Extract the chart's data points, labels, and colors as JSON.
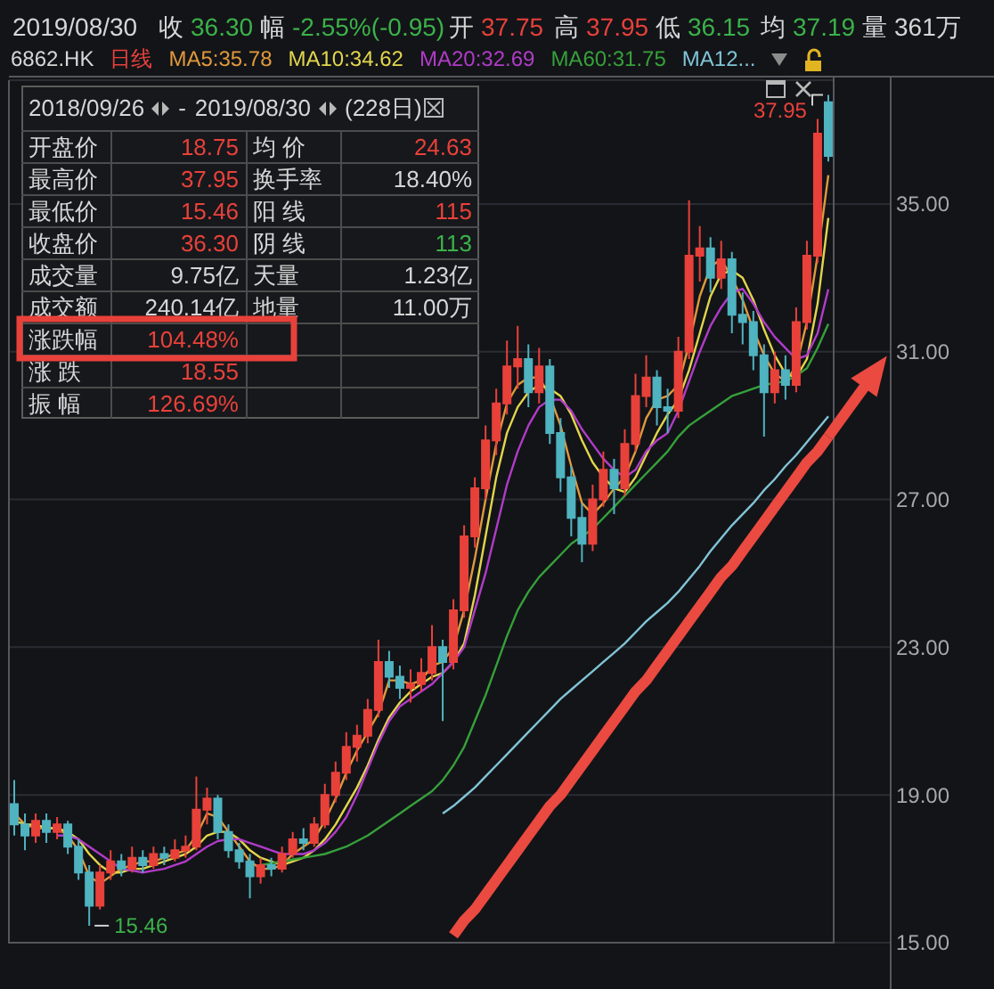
{
  "chart_data": {
    "type": "candlestick",
    "categories": [
      null,
      null,
      null,
      null,
      null,
      null,
      null,
      null,
      null,
      null,
      null,
      null,
      null,
      null,
      null,
      null,
      null,
      null,
      null,
      null,
      null,
      null,
      null,
      null,
      null,
      null,
      null,
      null,
      null,
      null,
      null,
      null,
      null,
      null,
      null,
      null,
      null,
      null,
      null,
      null,
      null,
      null,
      null,
      null,
      null,
      null,
      null,
      null,
      null,
      null,
      null,
      null,
      null,
      null,
      null,
      null,
      null,
      null,
      null,
      null,
      null,
      null,
      null,
      null,
      null,
      null,
      null,
      null,
      null,
      null,
      null,
      null,
      null,
      null,
      null,
      null,
      null
    ],
    "ohlc": [
      [
        18.75,
        19.4,
        17.9,
        18.2
      ],
      [
        18.2,
        18.5,
        17.5,
        17.9
      ],
      [
        17.9,
        18.5,
        17.7,
        18.3
      ],
      [
        18.3,
        18.5,
        17.7,
        18.0
      ],
      [
        18.0,
        18.4,
        17.8,
        18.2
      ],
      [
        18.2,
        18.3,
        17.4,
        17.6
      ],
      [
        17.6,
        17.8,
        16.7,
        16.9
      ],
      [
        16.9,
        17.1,
        15.46,
        16.0
      ],
      [
        16.0,
        17.1,
        15.9,
        16.9
      ],
      [
        16.9,
        17.5,
        16.7,
        17.2
      ],
      [
        17.2,
        17.4,
        16.8,
        17.0
      ],
      [
        17.0,
        17.6,
        16.9,
        17.3
      ],
      [
        17.3,
        17.5,
        16.9,
        17.1
      ],
      [
        17.1,
        17.6,
        17.0,
        17.4
      ],
      [
        17.4,
        17.6,
        17.1,
        17.3
      ],
      [
        17.3,
        17.8,
        17.2,
        17.5
      ],
      [
        17.5,
        17.9,
        17.3,
        17.6
      ],
      [
        17.6,
        19.5,
        17.5,
        18.6
      ],
      [
        18.6,
        19.2,
        18.2,
        18.9
      ],
      [
        18.9,
        19.0,
        17.8,
        18.0
      ],
      [
        18.0,
        18.2,
        17.3,
        17.5
      ],
      [
        17.5,
        17.7,
        17.0,
        17.2
      ],
      [
        17.2,
        17.4,
        16.2,
        16.8
      ],
      [
        16.8,
        17.3,
        16.6,
        17.1
      ],
      [
        17.1,
        17.3,
        16.8,
        17.0
      ],
      [
        17.0,
        17.6,
        16.9,
        17.4
      ],
      [
        17.4,
        18.0,
        17.3,
        17.8
      ],
      [
        17.8,
        18.1,
        17.5,
        17.7
      ],
      [
        17.7,
        18.4,
        17.6,
        18.2
      ],
      [
        18.2,
        19.3,
        18.1,
        19.0
      ],
      [
        19.0,
        19.9,
        18.8,
        19.6
      ],
      [
        19.6,
        20.7,
        19.4,
        20.3
      ],
      [
        20.3,
        20.9,
        19.9,
        20.6
      ],
      [
        20.6,
        21.6,
        20.4,
        21.3
      ],
      [
        21.3,
        23.2,
        21.1,
        22.6
      ],
      [
        22.6,
        22.9,
        21.9,
        22.2
      ],
      [
        22.2,
        22.5,
        21.6,
        21.9
      ],
      [
        21.9,
        22.4,
        21.5,
        22.0
      ],
      [
        22.0,
        22.7,
        21.8,
        22.3
      ],
      [
        22.3,
        23.6,
        22.1,
        23.0
      ],
      [
        23.0,
        23.2,
        21.0,
        22.6
      ],
      [
        22.6,
        24.3,
        22.4,
        24.0
      ],
      [
        24.0,
        26.3,
        23.8,
        26.0
      ],
      [
        26.0,
        27.6,
        25.7,
        27.3
      ],
      [
        27.3,
        29.0,
        27.0,
        28.6
      ],
      [
        28.6,
        30.0,
        28.2,
        29.6
      ],
      [
        29.6,
        31.3,
        29.3,
        30.6
      ],
      [
        30.6,
        31.7,
        30.0,
        30.8
      ],
      [
        30.8,
        31.2,
        29.5,
        29.9
      ],
      [
        29.9,
        31.1,
        29.6,
        30.6
      ],
      [
        30.6,
        30.8,
        28.5,
        28.8
      ],
      [
        28.8,
        29.2,
        27.2,
        27.6
      ],
      [
        27.6,
        27.9,
        26.0,
        26.5
      ],
      [
        26.5,
        26.9,
        25.3,
        25.8
      ],
      [
        25.8,
        27.4,
        25.6,
        27.0
      ],
      [
        27.0,
        28.3,
        26.8,
        27.8
      ],
      [
        27.8,
        28.1,
        26.6,
        27.3
      ],
      [
        27.3,
        28.9,
        27.1,
        28.5
      ],
      [
        28.5,
        30.4,
        28.3,
        29.8
      ],
      [
        29.8,
        30.9,
        29.5,
        30.3
      ],
      [
        30.3,
        30.5,
        29.0,
        29.5
      ],
      [
        29.5,
        30.0,
        28.8,
        29.4
      ],
      [
        29.4,
        31.4,
        29.2,
        31.0
      ],
      [
        31.0,
        35.1,
        30.8,
        33.6
      ],
      [
        33.6,
        34.4,
        32.9,
        33.8
      ],
      [
        33.8,
        34.1,
        32.6,
        33.0
      ],
      [
        33.0,
        34.0,
        32.7,
        33.5
      ],
      [
        33.5,
        33.7,
        31.5,
        32.0
      ],
      [
        32.0,
        32.6,
        31.2,
        31.8
      ],
      [
        31.8,
        32.1,
        30.5,
        30.9
      ],
      [
        30.9,
        31.2,
        28.7,
        29.9
      ],
      [
        29.9,
        31.0,
        29.6,
        30.5
      ],
      [
        30.5,
        30.9,
        29.7,
        30.1
      ],
      [
        30.1,
        32.2,
        29.9,
        31.8
      ],
      [
        31.8,
        34.0,
        31.6,
        33.6
      ],
      [
        33.6,
        37.3,
        33.4,
        36.9
      ],
      [
        37.75,
        37.95,
        36.15,
        36.3
      ]
    ],
    "colors": [
      "#4fb3c0",
      "#4fb3c0",
      "#e8413a",
      "#4fb3c0",
      "#e8413a",
      "#4fb3c0",
      "#4fb3c0",
      "#4fb3c0",
      "#e8413a",
      "#e8413a",
      "#4fb3c0",
      "#e8413a",
      "#4fb3c0",
      "#e8413a",
      "#4fb3c0",
      "#e8413a",
      "#e8413a",
      "#e8413a",
      "#e8413a",
      "#4fb3c0",
      "#4fb3c0",
      "#4fb3c0",
      "#4fb3c0",
      "#e8413a",
      "#4fb3c0",
      "#e8413a",
      "#e8413a",
      "#4fb3c0",
      "#e8413a",
      "#e8413a",
      "#e8413a",
      "#e8413a",
      "#e8413a",
      "#e8413a",
      "#e8413a",
      "#4fb3c0",
      "#4fb3c0",
      "#e8413a",
      "#e8413a",
      "#e8413a",
      "#4fb3c0",
      "#e8413a",
      "#e8413a",
      "#e8413a",
      "#e8413a",
      "#e8413a",
      "#e8413a",
      "#e8413a",
      "#4fb3c0",
      "#e8413a",
      "#4fb3c0",
      "#4fb3c0",
      "#4fb3c0",
      "#4fb3c0",
      "#e8413a",
      "#e8413a",
      "#4fb3c0",
      "#e8413a",
      "#e8413a",
      "#e8413a",
      "#4fb3c0",
      "#4fb3c0",
      "#e8413a",
      "#e8413a",
      "#e8413a",
      "#4fb3c0",
      "#e8413a",
      "#4fb3c0",
      "#4fb3c0",
      "#4fb3c0",
      "#4fb3c0",
      "#e8413a",
      "#4fb3c0",
      "#e8413a",
      "#e8413a",
      "#e8413a",
      "#4fb3c0"
    ],
    "series": [
      {
        "name": "MA5:35.78",
        "type": "line",
        "color": "#e0993c",
        "values": [
          18.5,
          18.2,
          18.1,
          18.1,
          18.1,
          17.9,
          17.5,
          16.8,
          16.6,
          16.8,
          17.0,
          17.1,
          17.2,
          17.2,
          17.3,
          17.4,
          17.5,
          17.9,
          18.5,
          18.4,
          18.0,
          17.6,
          17.2,
          17.0,
          17.0,
          17.1,
          17.4,
          17.6,
          17.8,
          18.3,
          18.9,
          19.6,
          20.2,
          20.7,
          21.2,
          22.1,
          22.1,
          22.0,
          22.1,
          22.5,
          22.6,
          23.0,
          24.0,
          25.4,
          27.0,
          28.5,
          29.6,
          30.1,
          30.3,
          30.3,
          29.8,
          29.0,
          27.9,
          26.9,
          26.6,
          26.9,
          27.3,
          27.6,
          28.3,
          29.2,
          29.7,
          29.8,
          30.1,
          31.2,
          32.5,
          33.3,
          33.5,
          33.0,
          32.4,
          31.6,
          30.9,
          30.4,
          30.2,
          30.6,
          31.8,
          33.6,
          35.78
        ]
      },
      {
        "name": "MA10:34.62",
        "type": "line",
        "color": "#e2d64c",
        "values": [
          18.3,
          18.2,
          18.2,
          18.1,
          18.1,
          18.0,
          17.8,
          17.4,
          17.1,
          16.9,
          16.9,
          17.0,
          17.0,
          17.1,
          17.2,
          17.3,
          17.4,
          17.6,
          17.9,
          18.0,
          18.0,
          17.8,
          17.5,
          17.3,
          17.2,
          17.1,
          17.2,
          17.3,
          17.5,
          17.8,
          18.2,
          18.7,
          19.2,
          19.8,
          20.5,
          21.1,
          21.5,
          21.8,
          22.0,
          22.2,
          22.3,
          22.6,
          23.1,
          24.4,
          26.0,
          27.6,
          28.8,
          29.5,
          29.9,
          30.1,
          30.0,
          29.8,
          29.3,
          28.6,
          28.0,
          27.6,
          27.3,
          27.2,
          27.6,
          28.2,
          28.8,
          29.3,
          29.7,
          30.5,
          31.5,
          32.5,
          33.1,
          33.2,
          33.0,
          32.4,
          31.6,
          30.9,
          30.4,
          30.3,
          30.8,
          32.3,
          34.62
        ]
      },
      {
        "name": "MA20:32.69",
        "type": "line",
        "color": "#b03cc8",
        "values": [
          null,
          null,
          null,
          null,
          17.9,
          17.9,
          17.8,
          17.6,
          17.4,
          17.2,
          17.0,
          16.95,
          16.9,
          16.95,
          17.0,
          17.1,
          17.2,
          17.4,
          17.6,
          17.75,
          17.8,
          17.8,
          17.7,
          17.6,
          17.5,
          17.4,
          17.4,
          17.4,
          17.5,
          17.7,
          18.0,
          18.4,
          19.0,
          19.7,
          20.4,
          21.0,
          21.4,
          21.6,
          21.8,
          22.0,
          22.3,
          22.6,
          23.0,
          24.0,
          25.0,
          26.2,
          27.4,
          28.3,
          29.0,
          29.5,
          29.7,
          29.7,
          29.4,
          28.9,
          28.5,
          28.1,
          27.8,
          27.6,
          27.8,
          28.3,
          28.6,
          28.8,
          29.4,
          30.2,
          31.0,
          31.7,
          32.2,
          32.6,
          32.7,
          32.3,
          31.8,
          31.4,
          31.1,
          30.8,
          30.9,
          31.5,
          32.69
        ]
      },
      {
        "name": "MA60:31.75",
        "type": "line",
        "color": "#36a03a",
        "values": [
          null,
          null,
          null,
          null,
          null,
          null,
          null,
          null,
          null,
          null,
          null,
          null,
          null,
          null,
          null,
          null,
          null,
          null,
          null,
          null,
          null,
          null,
          null,
          17.1,
          17.15,
          17.2,
          17.25,
          17.3,
          17.35,
          17.4,
          17.5,
          17.6,
          17.75,
          17.9,
          18.1,
          18.3,
          18.5,
          18.7,
          18.9,
          19.1,
          19.4,
          19.8,
          20.3,
          21.0,
          21.7,
          22.5,
          23.3,
          24.0,
          24.5,
          24.9,
          25.2,
          25.5,
          25.8,
          26.0,
          26.2,
          26.5,
          26.8,
          27.1,
          27.4,
          27.7,
          28.0,
          28.3,
          28.7,
          29.0,
          29.2,
          29.4,
          29.6,
          29.8,
          29.9,
          30.0,
          30.1,
          30.15,
          30.2,
          30.35,
          30.55,
          31.1,
          31.75
        ]
      },
      {
        "name": "MA12...",
        "type": "line",
        "color": "#80c4d6",
        "values": [
          null,
          null,
          null,
          null,
          null,
          null,
          null,
          null,
          null,
          null,
          null,
          null,
          null,
          null,
          null,
          null,
          null,
          null,
          null,
          null,
          null,
          null,
          null,
          null,
          null,
          null,
          null,
          null,
          null,
          null,
          null,
          null,
          null,
          null,
          null,
          null,
          null,
          null,
          null,
          null,
          18.5,
          18.7,
          18.95,
          19.2,
          19.5,
          19.8,
          20.1,
          20.4,
          20.7,
          21.0,
          21.3,
          21.6,
          21.85,
          22.1,
          22.35,
          22.6,
          22.85,
          23.1,
          23.4,
          23.7,
          23.95,
          24.2,
          24.5,
          24.85,
          25.2,
          25.6,
          25.95,
          26.3,
          26.6,
          26.9,
          27.25,
          27.55,
          27.9,
          28.2,
          28.55,
          28.9,
          29.25
        ]
      },
      {
        "type": "line",
        "color": "#ea4a40",
        "values": [
          null,
          null,
          null,
          null,
          null,
          null,
          null,
          null,
          null,
          null,
          null,
          null,
          null,
          null,
          null,
          null,
          null,
          null,
          null,
          null,
          null,
          null,
          null,
          null,
          null,
          null,
          null,
          null,
          null,
          null,
          null,
          null,
          null,
          null,
          null,
          null,
          null,
          null,
          null,
          null,
          null,
          15.2,
          15.6,
          15.9,
          16.3,
          16.7,
          17.1,
          17.5,
          17.9,
          18.3,
          18.7,
          19.0,
          19.4,
          19.8,
          20.2,
          20.6,
          21.0,
          21.4,
          21.8,
          22.1,
          22.5,
          22.9,
          23.3,
          23.7,
          24.1,
          24.5,
          24.9,
          25.2,
          25.6,
          26.0,
          26.4,
          26.8,
          27.2,
          27.6,
          28.0,
          28.3,
          28.7
        ]
      }
    ],
    "ylim": [
      15,
      38.35
    ],
    "yticks": [
      {
        "value": 15,
        "label": "15.00"
      },
      {
        "value": 19,
        "label": "19.00"
      },
      {
        "value": 23,
        "label": "23.00"
      },
      {
        "value": 27,
        "label": "27.00"
      },
      {
        "value": 31,
        "label": "31.00"
      },
      {
        "value": 35,
        "label": "35.00"
      }
    ],
    "grid": "y",
    "legend": "top",
    "tick_labels": "y",
    "annotations": [
      "2019/08/30",
      "收 36.30",
      "幅 -2.55%(-0.95)",
      "开 37.75",
      "高 37.95",
      "低 36.15",
      "均 37.19",
      "量 361万",
      "6862.HK",
      "日线",
      "2018/09/26",
      "-",
      "2019/08/30",
      "(228日)",
      "开盘价",
      "18.75",
      "均 价",
      "24.63",
      "最高价",
      "37.95",
      "换手率",
      "18.40%",
      "最低价",
      "15.46",
      "阳 线",
      "115",
      "收盘价",
      "36.30",
      "阴 线",
      "113",
      "成交量",
      "9.75亿",
      "天量",
      "1.23亿",
      "成交额",
      "240.14亿",
      "地量",
      "11.00万",
      "涨跌幅",
      "104.48%",
      "涨 跌",
      "18.55",
      "振 幅",
      "126.69%",
      "37.95",
      "15.46"
    ]
  }
}
